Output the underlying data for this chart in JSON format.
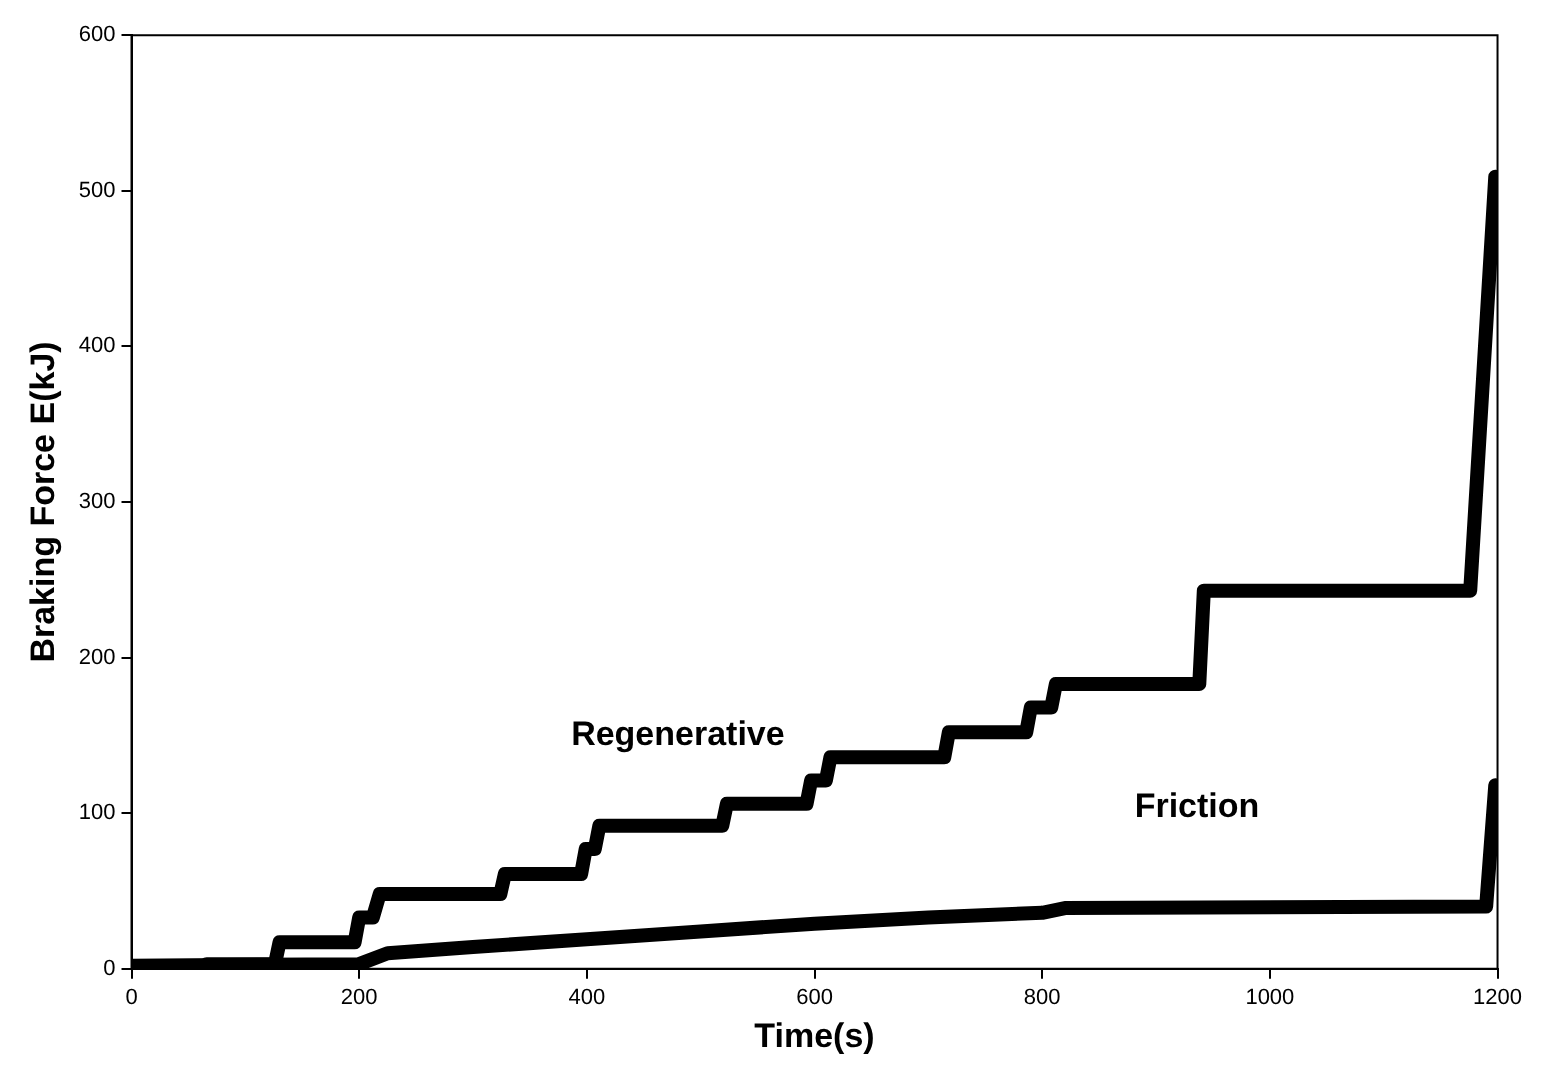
{
  "chart_data": {
    "type": "line",
    "xlabel": "Time(s)",
    "ylabel": "Braking Force E(kJ)",
    "xlim": [
      0,
      1200
    ],
    "xticks": [
      0,
      200,
      400,
      600,
      800,
      1000,
      1200
    ],
    "ylim": [
      0,
      600
    ],
    "yticks": [
      0,
      100,
      200,
      300,
      400,
      500,
      600
    ],
    "grid": false,
    "legend": false,
    "marker": "none",
    "line_style": "solid",
    "series": [
      {
        "name": "Regenerative",
        "color": "#000000",
        "x": [
          0,
          62,
          66,
          126,
          130,
          196,
          200,
          212,
          218,
          324,
          328,
          395,
          399,
          407,
          411,
          519,
          523,
          593,
          597,
          610,
          614,
          714,
          718,
          786,
          790,
          808,
          812,
          938,
          942,
          1176,
          1198
        ],
        "values": [
          0,
          0,
          3,
          3,
          17,
          17,
          33,
          33,
          48,
          48,
          61,
          61,
          77,
          77,
          92,
          92,
          106,
          106,
          121,
          121,
          136,
          136,
          152,
          152,
          168,
          168,
          183,
          183,
          243,
          243,
          509
        ]
      },
      {
        "name": "Friction",
        "color": "#000000",
        "x": [
          0,
          200,
          225,
          300,
          400,
          500,
          600,
          700,
          800,
          820,
          1190,
          1198
        ],
        "values": [
          2,
          3,
          10,
          14,
          19,
          24,
          29,
          33,
          36,
          39,
          40,
          118
        ]
      }
    ]
  }
}
